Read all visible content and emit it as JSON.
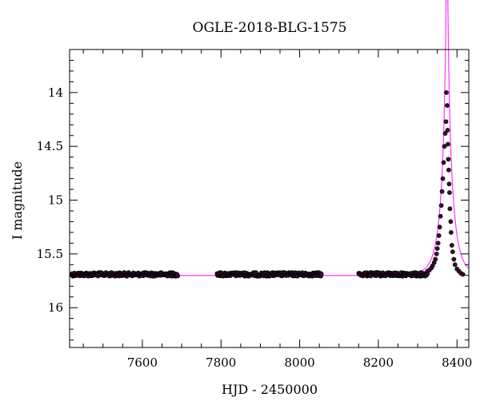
{
  "chart_data": {
    "type": "scatter",
    "title": "OGLE-2018-BLG-1575",
    "xlabel": "HJD - 2450000",
    "ylabel": "I magnitude",
    "xlim": [
      7415,
      8430
    ],
    "ylim": [
      16.37,
      13.6
    ],
    "y_inverted": true,
    "x_ticks_major": [
      7600,
      7800,
      8000,
      8200,
      8400
    ],
    "x_tick_labels": [
      "7600",
      "7800",
      "8000",
      "8200",
      "8400"
    ],
    "x_minor_step": 50,
    "y_ticks_major": [
      14,
      14.5,
      15,
      15.5,
      16
    ],
    "y_tick_labels": [
      "14",
      "14.5",
      "15",
      "15.5",
      "16"
    ],
    "y_minor_step": 0.1,
    "grid": false,
    "legend": "none",
    "colors": {
      "data_points": "#3a0f30",
      "model_curve": "#ff33ff",
      "axis": "#000000"
    },
    "baseline_mag": 15.69,
    "data_segments": [
      {
        "x_start": 7420,
        "x_end": 7690,
        "mag": 15.69,
        "count": 230
      },
      {
        "x_start": 7790,
        "x_end": 8055,
        "mag": 15.69,
        "count": 230
      },
      {
        "x_start": 8150,
        "x_end": 8325,
        "mag": 15.69,
        "count": 150
      }
    ],
    "event_points": [
      {
        "x": 8325,
        "y": 15.66
      },
      {
        "x": 8330,
        "y": 15.65
      },
      {
        "x": 8335,
        "y": 15.63
      },
      {
        "x": 8338,
        "y": 15.61
      },
      {
        "x": 8342,
        "y": 15.58
      },
      {
        "x": 8345,
        "y": 15.55
      },
      {
        "x": 8348,
        "y": 15.5
      },
      {
        "x": 8350,
        "y": 15.45
      },
      {
        "x": 8352,
        "y": 15.4
      },
      {
        "x": 8354,
        "y": 15.33
      },
      {
        "x": 8356,
        "y": 15.25
      },
      {
        "x": 8358,
        "y": 15.15
      },
      {
        "x": 8360,
        "y": 15.05
      },
      {
        "x": 8362,
        "y": 14.92
      },
      {
        "x": 8364,
        "y": 14.8
      },
      {
        "x": 8366,
        "y": 14.65
      },
      {
        "x": 8368,
        "y": 14.5
      },
      {
        "x": 8370,
        "y": 14.38
      },
      {
        "x": 8372,
        "y": 14.27
      },
      {
        "x": 8373,
        "y": 14.0
      },
      {
        "x": 8375,
        "y": 14.12
      },
      {
        "x": 8376,
        "y": 14.35
      },
      {
        "x": 8377,
        "y": 14.48
      },
      {
        "x": 8378,
        "y": 14.62
      },
      {
        "x": 8379,
        "y": 14.72
      },
      {
        "x": 8380,
        "y": 14.85
      },
      {
        "x": 8381,
        "y": 14.93
      },
      {
        "x": 8382,
        "y": 15.08
      },
      {
        "x": 8384,
        "y": 15.2
      },
      {
        "x": 8385,
        "y": 15.3
      },
      {
        "x": 8387,
        "y": 15.42
      },
      {
        "x": 8389,
        "y": 15.48
      },
      {
        "x": 8392,
        "y": 15.55
      },
      {
        "x": 8395,
        "y": 15.6
      },
      {
        "x": 8400,
        "y": 15.64
      },
      {
        "x": 8405,
        "y": 15.66
      },
      {
        "x": 8410,
        "y": 15.68
      },
      {
        "x": 8415,
        "y": 15.69
      }
    ],
    "model": {
      "t0": 8374.5,
      "u0": 0.053,
      "tE": 28,
      "base_mag": 15.7,
      "x_start": 7420,
      "x_end": 8430
    }
  }
}
